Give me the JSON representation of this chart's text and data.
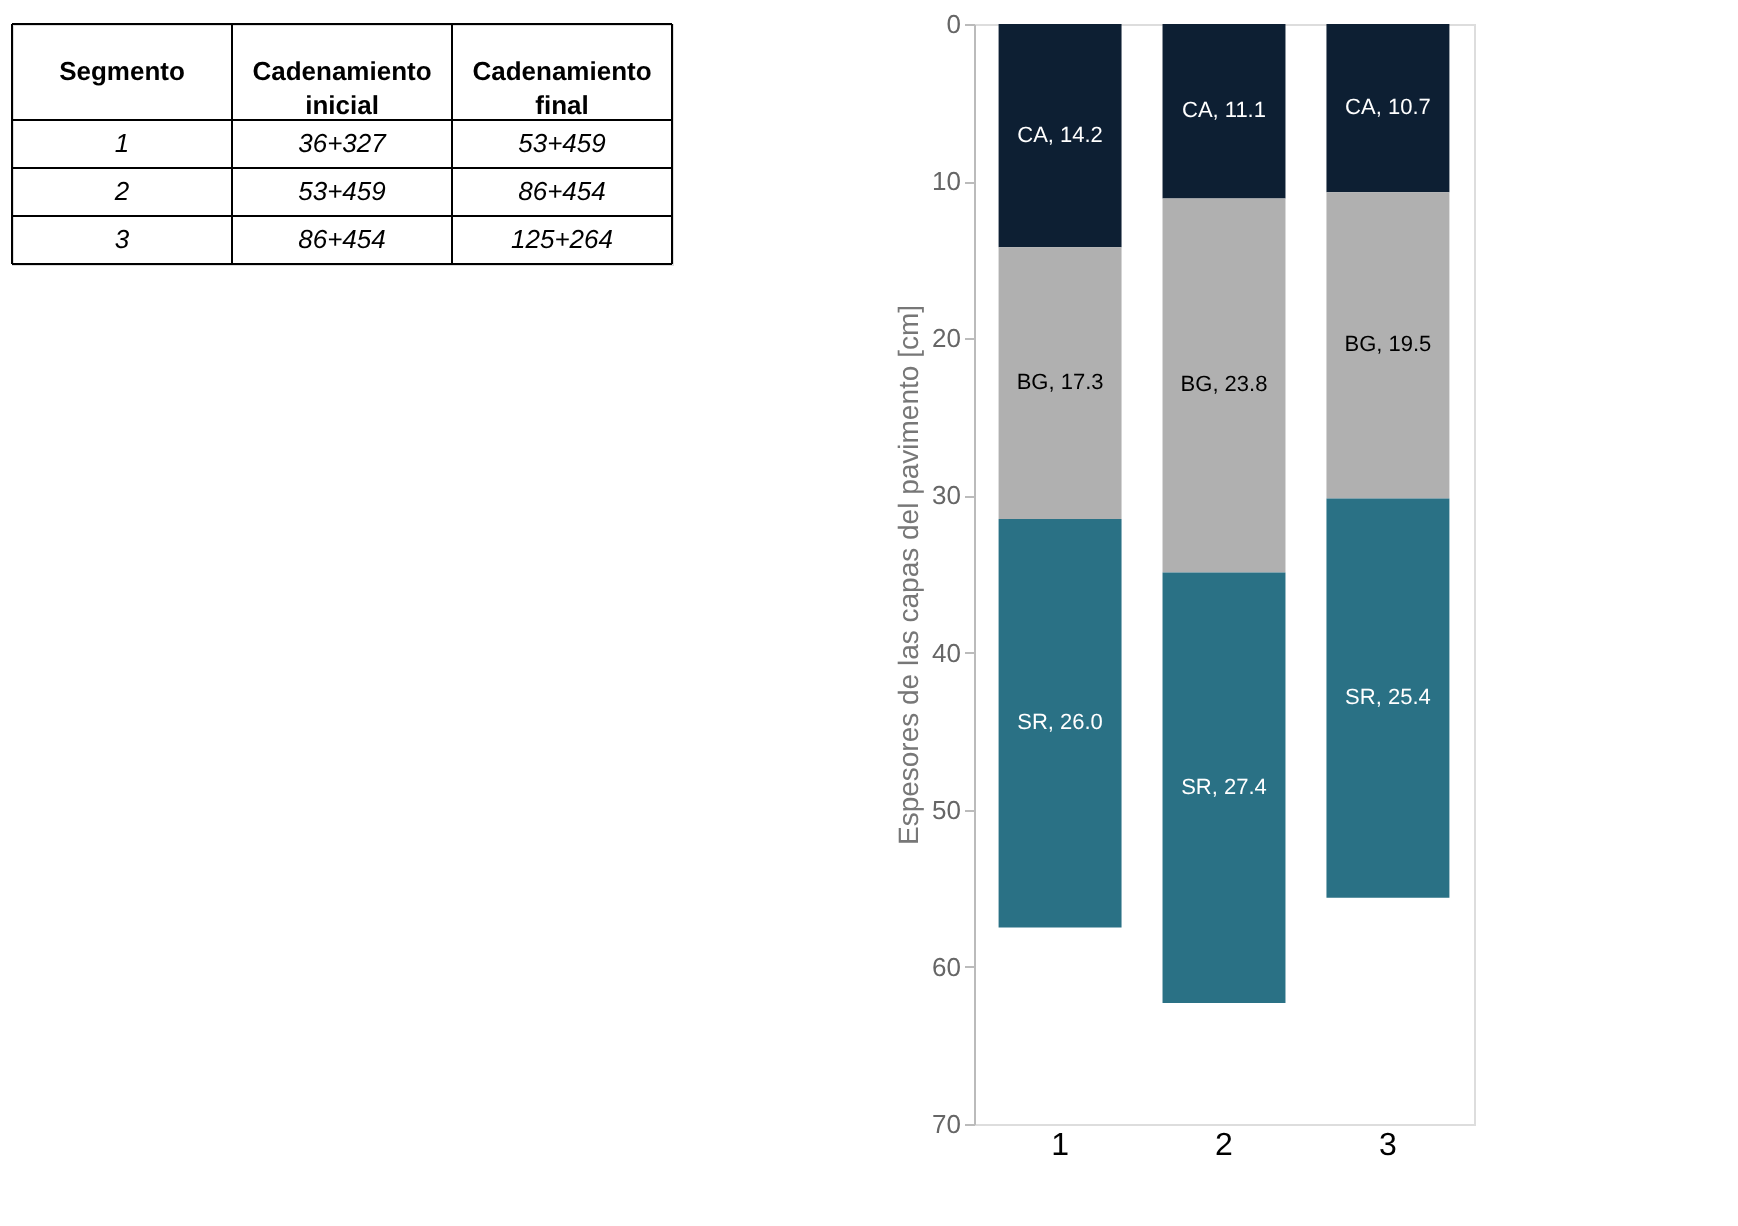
{
  "chart_data": [
    {
      "type": "other",
      "categories": [
        "Segmento",
        "Cadenamiento inicial",
        "Cadenamiento final"
      ],
      "annotations": [
        "1",
        "36+327",
        "53+459",
        "2",
        "53+459",
        "86+454",
        "3",
        "86+454",
        "125+264"
      ]
    },
    {
      "type": "bar",
      "stacked": true,
      "categories": [
        "1",
        "2",
        "3"
      ],
      "ylabel": "Espesores de las capas del pavimento [cm]",
      "ylim": [
        70,
        0
      ],
      "yticks": [
        0,
        10,
        20,
        30,
        40,
        50,
        60,
        70
      ],
      "grid": false,
      "series": [
        {
          "color": "#0d1f33",
          "values": [
            14.2,
            11.1,
            10.7
          ],
          "value_labels": [
            "CA, 14.2",
            "CA, 11.1",
            "CA, 10.7"
          ]
        },
        {
          "color": "#b0b0b0",
          "values": [
            17.3,
            23.8,
            19.5
          ],
          "value_labels": [
            "BG, 17.3",
            "BG, 23.8",
            "BG, 19.5"
          ]
        },
        {
          "color": "#2a7185",
          "values": [
            26.0,
            27.4,
            25.4
          ],
          "value_labels": [
            "SR, 26.0",
            "SR, 27.4",
            "SR, 25.4"
          ]
        }
      ]
    }
  ]
}
